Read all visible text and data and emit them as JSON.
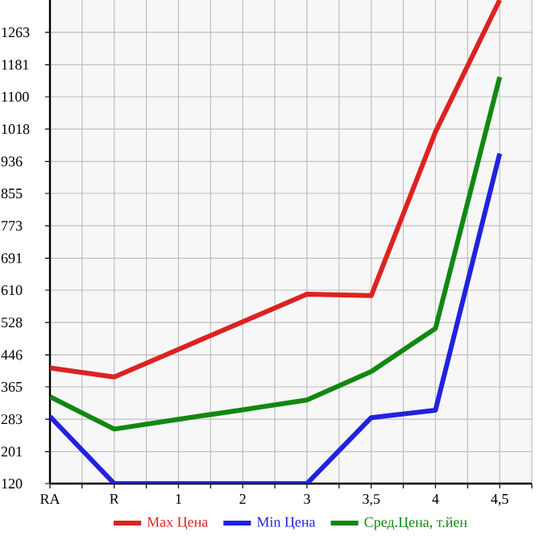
{
  "chart_data": {
    "type": "line",
    "categories": [
      "RA",
      "R",
      "1",
      "2",
      "3",
      "3,5",
      "4",
      "4,5"
    ],
    "series": [
      {
        "name": "Max Цена",
        "color": "#dd2222",
        "values": [
          413,
          390,
          460,
          530,
          600,
          596,
          1011,
          1345
        ]
      },
      {
        "name": "Min Цена",
        "color": "#2222dd",
        "values": [
          290,
          120,
          120,
          120,
          120,
          287,
          306,
          956
        ]
      },
      {
        "name": "Сред.Цена, т.йен",
        "color": "#118811",
        "values": [
          340,
          258,
          283,
          307,
          332,
          404,
          513,
          1150
        ]
      }
    ],
    "ylim": [
      120,
      1345
    ],
    "yticks": [
      120,
      201,
      283,
      365,
      446,
      528,
      610,
      691,
      773,
      855,
      936,
      1018,
      1100,
      1181,
      1263
    ],
    "grid": true,
    "legend": "bottom",
    "marker": "none",
    "line_style": "solid"
  }
}
